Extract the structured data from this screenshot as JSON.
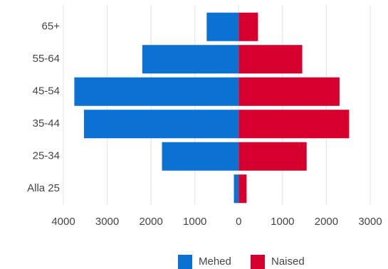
{
  "chart_data": {
    "type": "pyramid",
    "categories": [
      "65+",
      "55-64",
      "45-54",
      "35-44",
      "25-34",
      "Alla 25"
    ],
    "series": [
      {
        "name": "Mehed",
        "color": "#0b72d3",
        "values": [
          -730,
          -2200,
          -3750,
          -3530,
          -1750,
          -110
        ]
      },
      {
        "name": "Naised",
        "color": "#d6002f",
        "values": [
          440,
          1450,
          2300,
          2520,
          1550,
          180
        ]
      }
    ],
    "xlim": [
      -4000,
      3000
    ],
    "xticks": [
      {
        "value": -4000,
        "label": "4000"
      },
      {
        "value": -3000,
        "label": "3000"
      },
      {
        "value": -2000,
        "label": "2000"
      },
      {
        "value": -1000,
        "label": "1000"
      },
      0,
      1000,
      2000,
      3000
    ],
    "grid": true,
    "legend": "bottom"
  }
}
